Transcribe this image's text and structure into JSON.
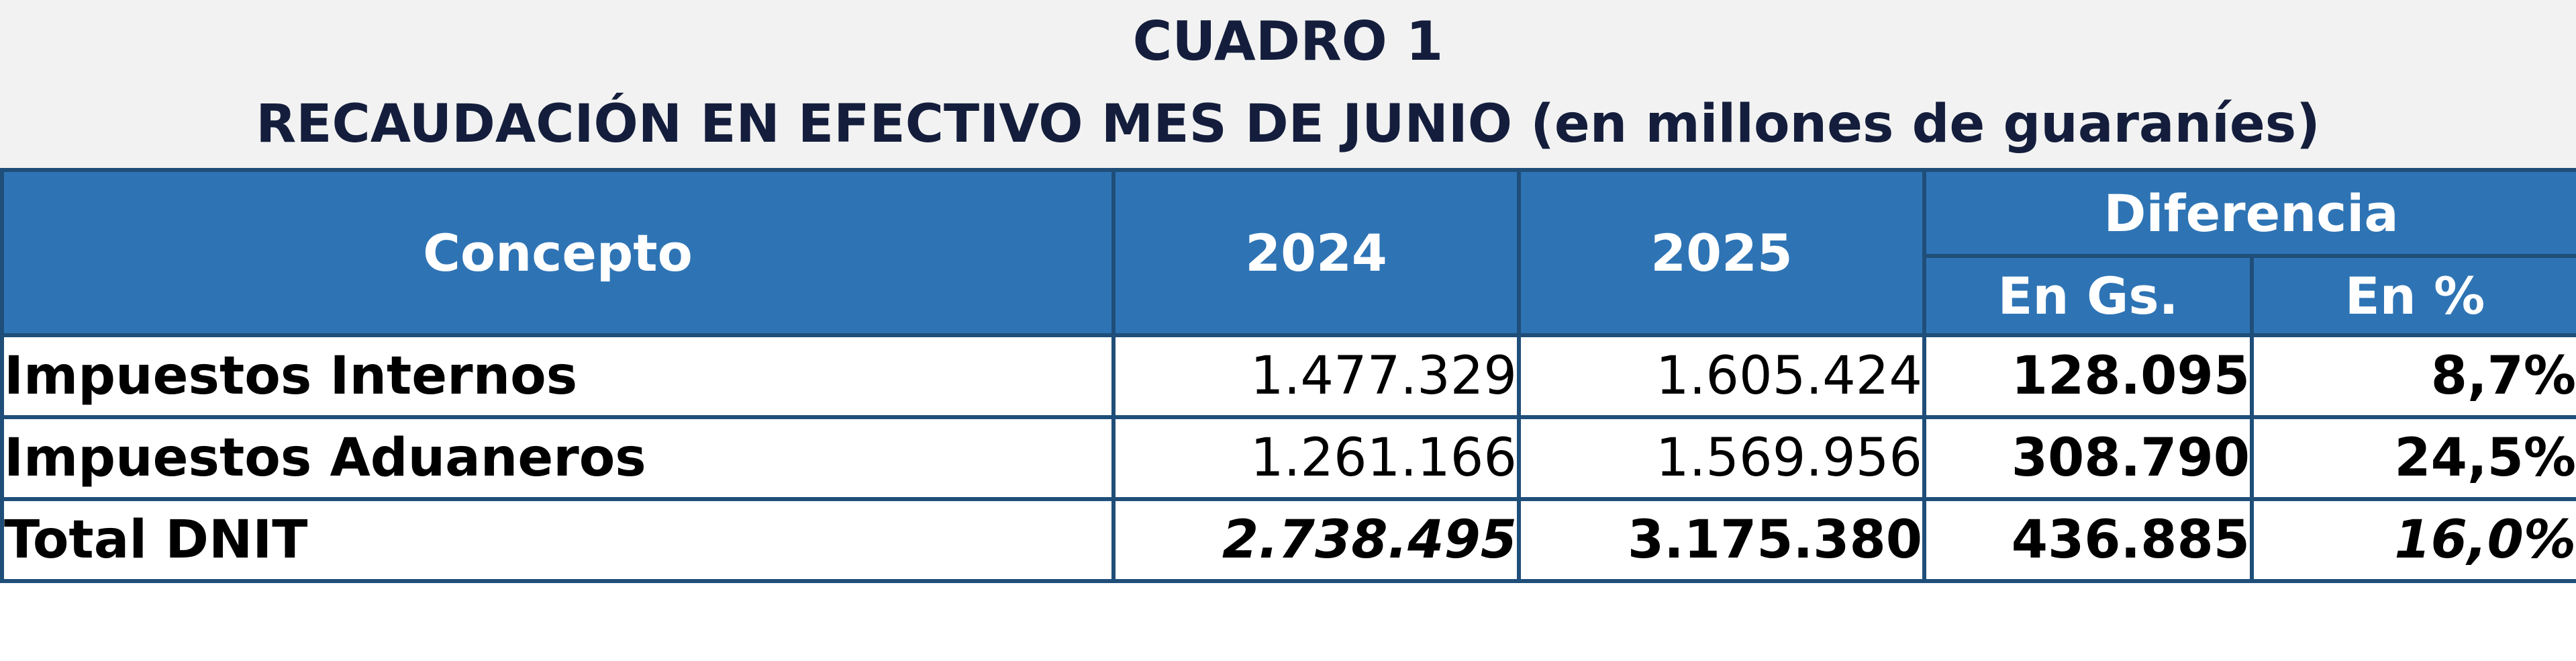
{
  "title": {
    "line1": "CUADRO 1",
    "line2": "RECAUDACIÓN EN EFECTIVO MES DE JUNIO (en millones de guaraníes)"
  },
  "table": {
    "headers": {
      "concepto": "Concepto",
      "year_2024": "2024",
      "year_2025": "2025",
      "diferencia": "Diferencia",
      "en_gs": "En Gs.",
      "en_pct": "En %"
    },
    "rows": [
      {
        "concepto": "Impuestos Internos",
        "y2024": "1.477.329",
        "y2025": "1.605.424",
        "en_gs": "128.095",
        "en_pct": "8,7%"
      },
      {
        "concepto": "Impuestos Aduaneros",
        "y2024": "1.261.166",
        "y2025": "1.569.956",
        "en_gs": "308.790",
        "en_pct": "24,5%"
      },
      {
        "concepto": "Total DNIT",
        "y2024": "2.738.495",
        "y2025": "3.175.380",
        "en_gs": "436.885",
        "en_pct": "16,0%"
      }
    ]
  },
  "colors": {
    "header_background": "#2e74b5",
    "border": "#1f4e79",
    "title_text": "#141e3c",
    "title_band": "#f2f2f2"
  }
}
